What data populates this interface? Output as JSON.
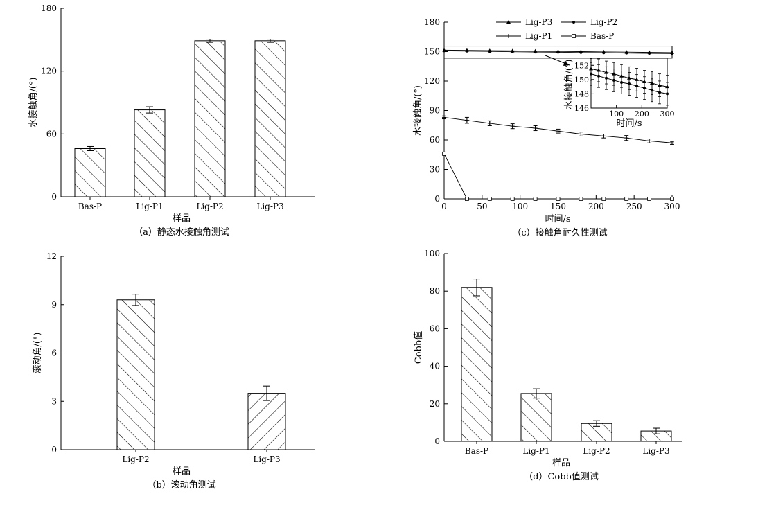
{
  "chart_data": [
    {
      "type": "bar",
      "caption": "（a）静态水接触角测试",
      "xlabel": "样品",
      "ylabel": "水接触角/(°)",
      "ylim": [
        0,
        180
      ],
      "yticks": [
        "0",
        "60",
        "120",
        "180"
      ],
      "categories": [
        "Bas-P",
        "Lig-P1",
        "Lig-P2",
        "Lig-P3"
      ],
      "values": [
        46,
        83,
        149,
        149
      ],
      "errors": [
        2,
        3,
        1.5,
        1.5
      ]
    },
    {
      "type": "bar",
      "caption": "（b）滚动角测试",
      "xlabel": "样品",
      "ylabel": "滚动角/(°)",
      "ylim": [
        0,
        12
      ],
      "yticks": [
        "0",
        "3",
        "6",
        "9",
        "12"
      ],
      "categories": [
        "Lig-P2",
        "Lig-P3"
      ],
      "values": [
        9.3,
        3.5
      ],
      "errors": [
        0.35,
        0.45
      ]
    },
    {
      "type": "line",
      "caption": "（c）接触角耐久性测试",
      "xlabel": "时间/s",
      "ylabel": "水接触角/(°)",
      "xlim": [
        0,
        300
      ],
      "ylim": [
        0,
        180
      ],
      "xticks": [
        "0",
        "50",
        "100",
        "150",
        "200",
        "250",
        "300"
      ],
      "yticks": [
        "0",
        "30",
        "60",
        "90",
        "120",
        "150",
        "180"
      ],
      "legend_position": "top",
      "series": [
        {
          "name": "Lig-P3",
          "marker": "triangle",
          "x": [
            0,
            30,
            60,
            90,
            120,
            150,
            180,
            210,
            240,
            270,
            300
          ],
          "y": [
            151.5,
            151.3,
            151,
            150.8,
            150.5,
            150.2,
            150,
            149.7,
            149.5,
            149.2,
            149
          ]
        },
        {
          "name": "Lig-P2",
          "marker": "dot",
          "x": [
            0,
            30,
            60,
            90,
            120,
            150,
            180,
            210,
            240,
            270,
            300
          ],
          "y": [
            150.8,
            150.5,
            150.2,
            149.9,
            149.6,
            149.4,
            149.1,
            148.8,
            148.5,
            148.2,
            148
          ]
        },
        {
          "name": "Lig-P1",
          "marker": "cross",
          "x": [
            0,
            30,
            60,
            90,
            120,
            150,
            180,
            210,
            240,
            270,
            300
          ],
          "y": [
            83,
            80,
            77,
            74,
            72,
            69,
            66,
            64,
            62,
            59,
            57
          ],
          "errors": [
            1.5,
            3,
            2.5,
            2.5,
            2.5,
            2,
            2,
            2,
            2.5,
            2,
            1.5
          ]
        },
        {
          "name": "Bas-P",
          "marker": "square",
          "x": [
            0,
            30,
            60,
            90,
            120,
            150,
            180,
            210,
            240,
            270,
            300
          ],
          "y": [
            46,
            0,
            0,
            0,
            0,
            0,
            0,
            0,
            0,
            0,
            0
          ]
        }
      ],
      "inset": {
        "xlabel": "时间/s",
        "ylabel": "水接触角/(°)",
        "xlim": [
          0,
          300
        ],
        "ylim": [
          146,
          153
        ],
        "xticks": [
          "100",
          "200",
          "300"
        ],
        "yticks": [
          "146",
          "148",
          "150",
          "152"
        ]
      }
    },
    {
      "type": "bar",
      "caption": "（d）Cobb值测试",
      "xlabel": "样品",
      "ylabel": "Cobb值",
      "ylim": [
        0,
        100
      ],
      "yticks": [
        "0",
        "20",
        "40",
        "60",
        "80",
        "100"
      ],
      "categories": [
        "Bas-P",
        "Lig-P1",
        "Lig-P2",
        "Lig-P3"
      ],
      "values": [
        82,
        25.5,
        9.5,
        5.5
      ],
      "errors": [
        4.5,
        2.5,
        1.5,
        1.5
      ]
    }
  ]
}
